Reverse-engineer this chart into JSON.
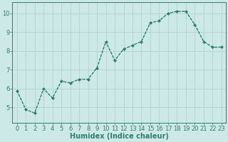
{
  "x": [
    0,
    1,
    2,
    3,
    4,
    5,
    6,
    7,
    8,
    9,
    10,
    11,
    12,
    13,
    14,
    15,
    16,
    17,
    18,
    19,
    20,
    21,
    22,
    23
  ],
  "y": [
    5.9,
    4.9,
    4.7,
    6.0,
    5.5,
    6.4,
    6.3,
    6.5,
    6.5,
    7.1,
    8.5,
    7.5,
    8.1,
    8.3,
    8.5,
    9.5,
    9.6,
    10.0,
    10.1,
    10.1,
    9.4,
    8.5,
    8.2,
    8.2
  ],
  "line_color": "#2e7d6e",
  "marker": "D",
  "marker_size": 2.0,
  "bg_color": "#cce9e7",
  "grid_color": "#b0d4d0",
  "xlabel": "Humidex (Indice chaleur)",
  "ylim": [
    4.2,
    10.6
  ],
  "xlim": [
    -0.5,
    23.5
  ],
  "yticks": [
    5,
    6,
    7,
    8,
    9,
    10
  ],
  "xticks": [
    0,
    1,
    2,
    3,
    4,
    5,
    6,
    7,
    8,
    9,
    10,
    11,
    12,
    13,
    14,
    15,
    16,
    17,
    18,
    19,
    20,
    21,
    22,
    23
  ],
  "tick_color": "#2e7d6e",
  "axis_color": "#2e7d6e",
  "xlabel_fontsize": 7,
  "tick_fontsize": 6,
  "linewidth": 1.0
}
